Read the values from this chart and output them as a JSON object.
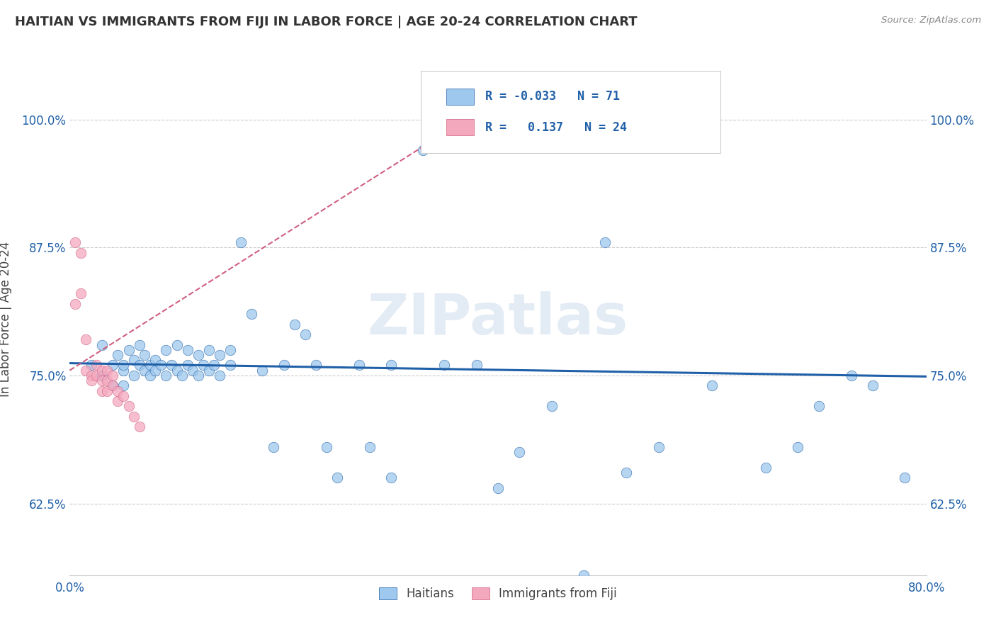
{
  "title": "HAITIAN VS IMMIGRANTS FROM FIJI IN LABOR FORCE | AGE 20-24 CORRELATION CHART",
  "source": "Source: ZipAtlas.com",
  "ylabel": "In Labor Force | Age 20-24",
  "xmin": 0.0,
  "xmax": 0.8,
  "ymin": 0.555,
  "ymax": 1.055,
  "yticks": [
    0.625,
    0.75,
    0.875,
    1.0
  ],
  "ytick_labels": [
    "62.5%",
    "75.0%",
    "87.5%",
    "100.0%"
  ],
  "xticks": [
    0.0,
    0.8
  ],
  "xtick_labels": [
    "0.0%",
    "80.0%"
  ],
  "legend_R1": "-0.033",
  "legend_N1": "71",
  "legend_R2": "0.137",
  "legend_N2": "24",
  "color_blue": "#9ec8ed",
  "color_pink": "#f4a8be",
  "trend_blue": "#2060a8",
  "trend_pink": "#d06080",
  "blue_x": [
    0.02,
    0.03,
    0.03,
    0.04,
    0.04,
    0.045,
    0.05,
    0.05,
    0.05,
    0.055,
    0.06,
    0.06,
    0.065,
    0.065,
    0.07,
    0.07,
    0.075,
    0.075,
    0.08,
    0.08,
    0.085,
    0.09,
    0.09,
    0.095,
    0.1,
    0.1,
    0.105,
    0.11,
    0.11,
    0.115,
    0.12,
    0.12,
    0.125,
    0.13,
    0.13,
    0.135,
    0.14,
    0.14,
    0.15,
    0.15,
    0.16,
    0.17,
    0.18,
    0.19,
    0.2,
    0.21,
    0.22,
    0.23,
    0.24,
    0.25,
    0.27,
    0.28,
    0.3,
    0.3,
    0.33,
    0.35,
    0.38,
    0.4,
    0.42,
    0.45,
    0.48,
    0.5,
    0.52,
    0.55,
    0.6,
    0.65,
    0.68,
    0.7,
    0.73,
    0.75,
    0.78
  ],
  "blue_y": [
    0.76,
    0.78,
    0.75,
    0.76,
    0.74,
    0.77,
    0.755,
    0.74,
    0.76,
    0.775,
    0.75,
    0.765,
    0.76,
    0.78,
    0.755,
    0.77,
    0.75,
    0.76,
    0.765,
    0.755,
    0.76,
    0.75,
    0.775,
    0.76,
    0.755,
    0.78,
    0.75,
    0.76,
    0.775,
    0.755,
    0.75,
    0.77,
    0.76,
    0.755,
    0.775,
    0.76,
    0.75,
    0.77,
    0.76,
    0.775,
    0.88,
    0.81,
    0.755,
    0.68,
    0.76,
    0.8,
    0.79,
    0.76,
    0.68,
    0.65,
    0.76,
    0.68,
    0.65,
    0.76,
    0.97,
    0.76,
    0.76,
    0.64,
    0.675,
    0.72,
    0.555,
    0.88,
    0.655,
    0.68,
    0.74,
    0.66,
    0.68,
    0.72,
    0.75,
    0.74,
    0.65
  ],
  "pink_x": [
    0.005,
    0.005,
    0.01,
    0.01,
    0.015,
    0.015,
    0.02,
    0.02,
    0.025,
    0.025,
    0.03,
    0.03,
    0.03,
    0.035,
    0.035,
    0.035,
    0.04,
    0.04,
    0.045,
    0.045,
    0.05,
    0.055,
    0.06,
    0.065
  ],
  "pink_y": [
    0.88,
    0.82,
    0.87,
    0.83,
    0.785,
    0.755,
    0.75,
    0.745,
    0.76,
    0.75,
    0.755,
    0.745,
    0.735,
    0.755,
    0.745,
    0.735,
    0.75,
    0.74,
    0.735,
    0.725,
    0.73,
    0.72,
    0.71,
    0.7
  ],
  "blue_trend_x0": 0.0,
  "blue_trend_y0": 0.762,
  "blue_trend_x1": 0.8,
  "blue_trend_y1": 0.749,
  "pink_trend_x0": 0.0,
  "pink_trend_y0": 0.755,
  "pink_trend_x1": 0.4,
  "pink_trend_y1": 1.02
}
